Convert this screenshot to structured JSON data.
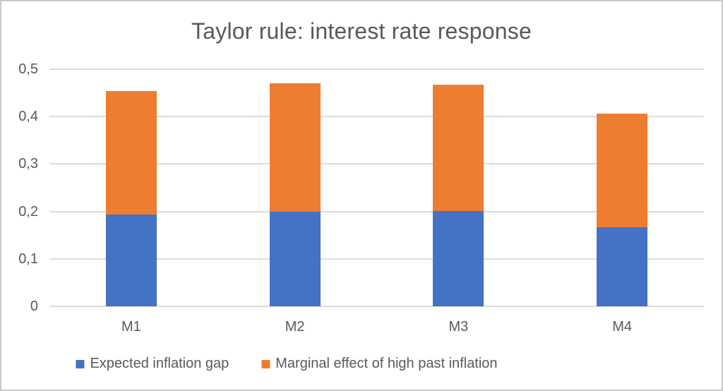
{
  "chart_data": {
    "type": "bar",
    "stacked": true,
    "title": "Taylor rule: interest rate response",
    "categories": [
      "M1",
      "M2",
      "M3",
      "M4"
    ],
    "series": [
      {
        "name": "Expected inflation gap",
        "color": "#4472C4",
        "values": [
          0.194,
          0.2,
          0.201,
          0.166
        ]
      },
      {
        "name": "Marginal effect of high past inflation",
        "color": "#ED7D31",
        "values": [
          0.26,
          0.27,
          0.266,
          0.241
        ]
      }
    ],
    "stack_totals": [
      0.454,
      0.47,
      0.467,
      0.407
    ],
    "y_axis": {
      "min": 0,
      "max": 0.5,
      "tick_interval": 0.1,
      "tick_values": [
        0,
        0.1,
        0.2,
        0.3,
        0.4,
        0.5
      ],
      "tick_labels": [
        "0",
        "0,1",
        "0,2",
        "0,3",
        "0,4",
        "0,5"
      ],
      "decimal_separator": ","
    },
    "xlabel": "",
    "ylabel": "",
    "grid": true,
    "legend_position": "bottom",
    "colors": {
      "gridline": "#dcdcdc",
      "axis_text": "#595959",
      "title_text": "#595959",
      "frame_border": "#c9c9c9"
    }
  }
}
